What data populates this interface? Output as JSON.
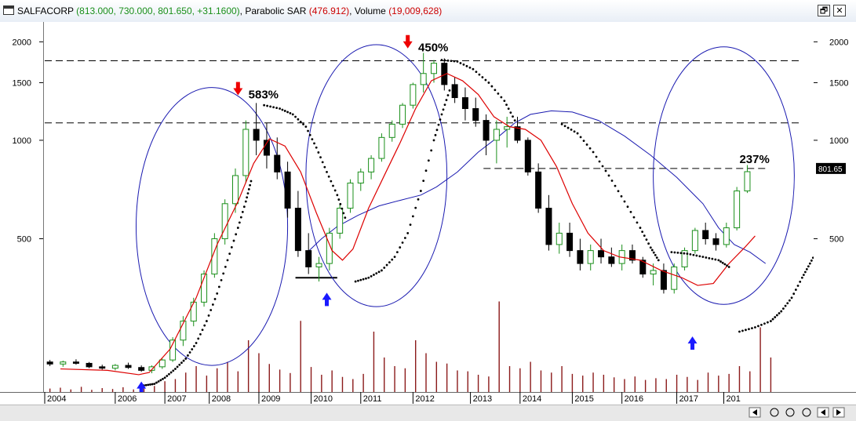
{
  "window": {
    "symbol": "SALFACORP",
    "ohlc": "(813.000, 730.000, 801.650, +31.1600)",
    "indicator": "Parabolic SAR",
    "indicator_value": "(476.912)",
    "volume_label": "Volume",
    "volume_value": "(19,009,628)",
    "sep": ",",
    "restore_glyph": "🗗",
    "close_glyph": "✕"
  },
  "colors": {
    "up_candle": "#1a8f1a",
    "down_candle": "#000000",
    "moving_average": "#dd0000",
    "blue_curve": "#1a1ab0",
    "volume": "#8b1a1a",
    "sar_dots": "#000000",
    "up_arrow": "#1a1aff",
    "down_arrow": "#ee0000",
    "price_tag": "#000000"
  },
  "chart_data": {
    "type": "candlestick",
    "scale": "log",
    "y_ticks": [
      500,
      1000,
      1500,
      2000
    ],
    "ylim": [
      170,
      2300
    ],
    "x_labels": [
      "2004",
      "2006",
      "2007",
      "2008",
      "2009",
      "2010",
      "2011",
      "2012",
      "2013",
      "2014",
      "2015",
      "2016",
      "2017",
      "201"
    ],
    "last_price_tag": "801.65",
    "annotations": [
      {
        "text": "583%",
        "x": 2007.9,
        "y": 1380,
        "arrow": "down"
      },
      {
        "text": "450%",
        "x": 2011.15,
        "y": 1920,
        "arrow": "down"
      },
      {
        "text": "237%",
        "x": 2017.3,
        "y": 875,
        "arrow": "none"
      },
      {
        "text": "",
        "x": 2005.85,
        "y": 182,
        "arrow": "up"
      },
      {
        "text": "",
        "x": 2009.4,
        "y": 340,
        "arrow": "up"
      },
      {
        "text": "",
        "x": 2016.4,
        "y": 250,
        "arrow": "up"
      }
    ],
    "horizontal_lines": [
      {
        "y": 1750,
        "from": 2004,
        "to": 2018.5,
        "style": "dashed"
      },
      {
        "y": 1130,
        "from": 2004,
        "to": 2018.5,
        "style": "dashed"
      },
      {
        "y": 820,
        "from": 2012.4,
        "to": 2017.8,
        "style": "dashed"
      }
    ],
    "support_line": {
      "y": 380,
      "from": 2008.8,
      "to": 2009.6
    },
    "ellipses": [
      {
        "cx": 2007.2,
        "cy": 560,
        "rx": 1.45,
        "y_top": 1450,
        "y_bottom": 205
      },
      {
        "cx": 2010.35,
        "cy": 700,
        "rx": 1.35,
        "y_top": 1960,
        "y_bottom": 310
      },
      {
        "cx": 2017.0,
        "cy": 680,
        "rx": 1.35,
        "y_top": 1930,
        "y_bottom": 315
      }
    ],
    "moving_average": [
      [
        2004.3,
        200
      ],
      [
        2005.2,
        198
      ],
      [
        2005.8,
        192
      ],
      [
        2006.0,
        195
      ],
      [
        2006.4,
        230
      ],
      [
        2006.9,
        330
      ],
      [
        2007.3,
        480
      ],
      [
        2007.7,
        650
      ],
      [
        2008.0,
        850
      ],
      [
        2008.3,
        1010
      ],
      [
        2008.6,
        960
      ],
      [
        2008.9,
        800
      ],
      [
        2009.2,
        600
      ],
      [
        2009.5,
        460
      ],
      [
        2009.7,
        430
      ],
      [
        2009.9,
        465
      ],
      [
        2010.2,
        620
      ],
      [
        2010.5,
        780
      ],
      [
        2010.8,
        980
      ],
      [
        2011.1,
        1250
      ],
      [
        2011.4,
        1520
      ],
      [
        2011.7,
        1600
      ],
      [
        2012.0,
        1520
      ],
      [
        2012.3,
        1380
      ],
      [
        2012.6,
        1180
      ],
      [
        2012.9,
        1100
      ],
      [
        2013.2,
        1080
      ],
      [
        2013.5,
        1000
      ],
      [
        2013.8,
        830
      ],
      [
        2014.1,
        640
      ],
      [
        2014.4,
        520
      ],
      [
        2014.7,
        460
      ],
      [
        2015.0,
        440
      ],
      [
        2015.4,
        430
      ],
      [
        2015.8,
        400
      ],
      [
        2016.2,
        380
      ],
      [
        2016.5,
        360
      ],
      [
        2016.8,
        365
      ],
      [
        2017.1,
        420
      ],
      [
        2017.4,
        470
      ],
      [
        2017.6,
        510
      ]
    ],
    "blue_curve": [
      [
        2009.0,
        450
      ],
      [
        2009.3,
        500
      ],
      [
        2009.6,
        545
      ],
      [
        2010.0,
        590
      ],
      [
        2010.4,
        630
      ],
      [
        2010.8,
        655
      ],
      [
        2011.2,
        680
      ],
      [
        2011.5,
        720
      ],
      [
        2011.9,
        800
      ],
      [
        2012.3,
        920
      ],
      [
        2012.7,
        1030
      ],
      [
        2013.0,
        1130
      ],
      [
        2013.3,
        1200
      ],
      [
        2013.7,
        1230
      ],
      [
        2014.1,
        1220
      ],
      [
        2014.6,
        1150
      ],
      [
        2015.1,
        1030
      ],
      [
        2015.6,
        900
      ],
      [
        2016.1,
        770
      ],
      [
        2016.6,
        640
      ],
      [
        2016.9,
        540
      ],
      [
        2017.2,
        480
      ],
      [
        2017.5,
        455
      ],
      [
        2017.8,
        420
      ]
    ],
    "sar_segments": [
      [
        [
          2005.9,
          178
        ],
        [
          2006.1,
          180
        ],
        [
          2006.3,
          188
        ],
        [
          2006.5,
          200
        ],
        [
          2006.7,
          215
        ],
        [
          2006.9,
          240
        ],
        [
          2007.1,
          280
        ],
        [
          2007.3,
          340
        ],
        [
          2007.5,
          430
        ],
        [
          2007.7,
          540
        ],
        [
          2007.85,
          650
        ],
        [
          2007.95,
          750
        ]
      ],
      [
        [
          2008.2,
          1280
        ],
        [
          2008.5,
          1250
        ],
        [
          2008.75,
          1200
        ],
        [
          2009.0,
          1100
        ],
        [
          2009.2,
          950
        ],
        [
          2009.4,
          800
        ],
        [
          2009.6,
          680
        ],
        [
          2009.75,
          580
        ]
      ],
      [
        [
          2009.95,
          370
        ],
        [
          2010.2,
          380
        ],
        [
          2010.45,
          400
        ],
        [
          2010.7,
          440
        ],
        [
          2010.95,
          520
        ],
        [
          2011.2,
          700
        ],
        [
          2011.45,
          1000
        ],
        [
          2011.6,
          1200
        ],
        [
          2011.75,
          1420
        ]
      ],
      [
        [
          2011.6,
          1760
        ],
        [
          2011.9,
          1740
        ],
        [
          2012.2,
          1650
        ],
        [
          2012.5,
          1500
        ],
        [
          2012.8,
          1320
        ],
        [
          2013.0,
          1150
        ]
      ],
      [
        [
          2013.9,
          1120
        ],
        [
          2014.2,
          1050
        ],
        [
          2014.5,
          920
        ],
        [
          2014.8,
          780
        ],
        [
          2015.1,
          650
        ],
        [
          2015.4,
          540
        ],
        [
          2015.6,
          470
        ],
        [
          2015.75,
          430
        ]
      ],
      [
        [
          2016.0,
          455
        ],
        [
          2016.3,
          450
        ],
        [
          2016.6,
          440
        ],
        [
          2016.9,
          430
        ],
        [
          2017.1,
          410
        ]
      ],
      [
        [
          2017.3,
          260
        ],
        [
          2017.6,
          268
        ],
        [
          2017.9,
          280
        ],
        [
          2018.1,
          300
        ],
        [
          2018.3,
          330
        ],
        [
          2018.5,
          380
        ],
        [
          2018.65,
          420
        ],
        [
          2018.8,
          465
        ]
      ]
    ],
    "candles": [
      [
        2004.1,
        210,
        213,
        204,
        207
      ],
      [
        2004.35,
        207,
        212,
        203,
        210
      ],
      [
        2004.6,
        210,
        214,
        206,
        208
      ],
      [
        2004.85,
        208,
        210,
        201,
        203
      ],
      [
        2005.1,
        203,
        206,
        199,
        201
      ],
      [
        2005.35,
        201,
        207,
        198,
        205
      ],
      [
        2005.6,
        205,
        209,
        200,
        202
      ],
      [
        2005.85,
        202,
        205,
        196,
        198
      ],
      [
        2006.05,
        198,
        205,
        194,
        203
      ],
      [
        2006.25,
        203,
        215,
        200,
        213
      ],
      [
        2006.45,
        213,
        250,
        210,
        245
      ],
      [
        2006.65,
        245,
        290,
        235,
        280
      ],
      [
        2006.85,
        280,
        330,
        270,
        320
      ],
      [
        2007.05,
        320,
        400,
        310,
        390
      ],
      [
        2007.25,
        390,
        520,
        380,
        500
      ],
      [
        2007.45,
        500,
        660,
        480,
        640
      ],
      [
        2007.65,
        640,
        820,
        600,
        780
      ],
      [
        2007.85,
        780,
        1150,
        740,
        1080
      ],
      [
        2008.05,
        1080,
        1300,
        900,
        1000
      ],
      [
        2008.25,
        1000,
        1130,
        820,
        900
      ],
      [
        2008.45,
        900,
        1020,
        760,
        800
      ],
      [
        2008.65,
        800,
        860,
        580,
        620
      ],
      [
        2008.85,
        620,
        700,
        440,
        460
      ],
      [
        2009.05,
        460,
        520,
        390,
        410
      ],
      [
        2009.25,
        410,
        440,
        370,
        420
      ],
      [
        2009.45,
        420,
        540,
        400,
        520
      ],
      [
        2009.65,
        520,
        640,
        500,
        620
      ],
      [
        2009.85,
        620,
        760,
        600,
        740
      ],
      [
        2010.05,
        740,
        820,
        700,
        800
      ],
      [
        2010.25,
        800,
        900,
        760,
        880
      ],
      [
        2010.45,
        880,
        1050,
        860,
        1020
      ],
      [
        2010.65,
        1020,
        1150,
        990,
        1120
      ],
      [
        2010.85,
        1120,
        1300,
        1090,
        1280
      ],
      [
        2011.05,
        1280,
        1500,
        1250,
        1480
      ],
      [
        2011.25,
        1480,
        1850,
        1400,
        1600
      ],
      [
        2011.45,
        1600,
        1760,
        1500,
        1720
      ],
      [
        2011.65,
        1720,
        1780,
        1420,
        1480
      ],
      [
        2011.85,
        1480,
        1560,
        1300,
        1350
      ],
      [
        2012.05,
        1350,
        1450,
        1150,
        1250
      ],
      [
        2012.25,
        1250,
        1350,
        1100,
        1150
      ],
      [
        2012.45,
        1150,
        1200,
        900,
        1000
      ],
      [
        2012.65,
        1000,
        1150,
        850,
        1080
      ],
      [
        2012.85,
        1080,
        1180,
        950,
        1100
      ],
      [
        2013.05,
        1100,
        1180,
        980,
        1000
      ],
      [
        2013.25,
        1000,
        1020,
        780,
        800
      ],
      [
        2013.45,
        800,
        850,
        600,
        620
      ],
      [
        2013.65,
        620,
        680,
        460,
        480
      ],
      [
        2013.85,
        480,
        560,
        450,
        520
      ],
      [
        2014.05,
        520,
        560,
        440,
        460
      ],
      [
        2014.25,
        460,
        500,
        400,
        420
      ],
      [
        2014.45,
        420,
        480,
        400,
        460
      ],
      [
        2014.65,
        460,
        500,
        420,
        440
      ],
      [
        2014.85,
        440,
        470,
        410,
        420
      ],
      [
        2015.05,
        420,
        480,
        400,
        460
      ],
      [
        2015.25,
        460,
        480,
        420,
        430
      ],
      [
        2015.45,
        430,
        440,
        380,
        390
      ],
      [
        2015.65,
        390,
        420,
        360,
        400
      ],
      [
        2015.85,
        400,
        420,
        340,
        350
      ],
      [
        2016.05,
        350,
        420,
        340,
        410
      ],
      [
        2016.25,
        410,
        470,
        400,
        460
      ],
      [
        2016.45,
        460,
        540,
        450,
        530
      ],
      [
        2016.65,
        530,
        560,
        480,
        500
      ],
      [
        2016.85,
        500,
        520,
        460,
        480
      ],
      [
        2017.05,
        480,
        560,
        470,
        540
      ],
      [
        2017.25,
        540,
        720,
        530,
        700
      ],
      [
        2017.45,
        700,
        840,
        690,
        801.65
      ]
    ],
    "volume": [
      [
        2004.1,
        8
      ],
      [
        2004.3,
        10
      ],
      [
        2004.5,
        6
      ],
      [
        2004.7,
        12
      ],
      [
        2004.9,
        5
      ],
      [
        2005.1,
        9
      ],
      [
        2005.3,
        7
      ],
      [
        2005.5,
        11
      ],
      [
        2005.7,
        6
      ],
      [
        2005.9,
        8
      ],
      [
        2006.1,
        14
      ],
      [
        2006.3,
        25
      ],
      [
        2006.5,
        30
      ],
      [
        2006.7,
        45
      ],
      [
        2006.9,
        60
      ],
      [
        2007.1,
        38
      ],
      [
        2007.3,
        55
      ],
      [
        2007.5,
        70
      ],
      [
        2007.7,
        48
      ],
      [
        2007.9,
        120
      ],
      [
        2008.1,
        90
      ],
      [
        2008.3,
        65
      ],
      [
        2008.5,
        52
      ],
      [
        2008.7,
        44
      ],
      [
        2008.9,
        165
      ],
      [
        2009.1,
        58
      ],
      [
        2009.3,
        40
      ],
      [
        2009.5,
        50
      ],
      [
        2009.7,
        35
      ],
      [
        2009.9,
        30
      ],
      [
        2010.1,
        42
      ],
      [
        2010.3,
        140
      ],
      [
        2010.5,
        80
      ],
      [
        2010.7,
        60
      ],
      [
        2010.9,
        55
      ],
      [
        2011.1,
        120
      ],
      [
        2011.3,
        90
      ],
      [
        2011.5,
        70
      ],
      [
        2011.7,
        66
      ],
      [
        2011.9,
        50
      ],
      [
        2012.1,
        48
      ],
      [
        2012.3,
        40
      ],
      [
        2012.5,
        36
      ],
      [
        2012.7,
        210
      ],
      [
        2012.9,
        60
      ],
      [
        2013.1,
        55
      ],
      [
        2013.3,
        70
      ],
      [
        2013.5,
        50
      ],
      [
        2013.7,
        45
      ],
      [
        2013.9,
        60
      ],
      [
        2014.1,
        42
      ],
      [
        2014.3,
        38
      ],
      [
        2014.5,
        45
      ],
      [
        2014.7,
        40
      ],
      [
        2014.9,
        34
      ],
      [
        2015.1,
        30
      ],
      [
        2015.3,
        36
      ],
      [
        2015.5,
        28
      ],
      [
        2015.7,
        32
      ],
      [
        2015.9,
        30
      ],
      [
        2016.1,
        40
      ],
      [
        2016.3,
        35
      ],
      [
        2016.5,
        28
      ],
      [
        2016.7,
        45
      ],
      [
        2016.9,
        38
      ],
      [
        2017.1,
        42
      ],
      [
        2017.3,
        60
      ],
      [
        2017.5,
        48
      ],
      [
        2017.7,
        150
      ],
      [
        2017.9,
        80
      ]
    ]
  }
}
